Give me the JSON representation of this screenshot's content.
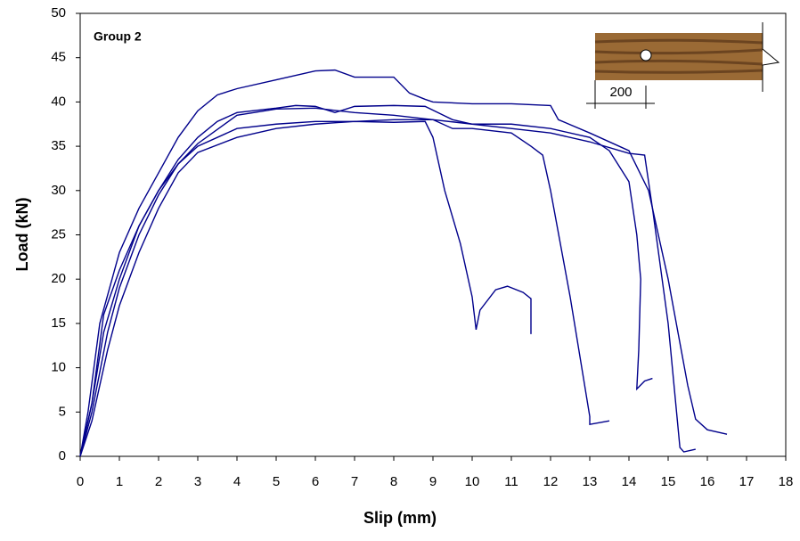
{
  "chart_data": {
    "type": "line",
    "xlabel": "Slip (mm)",
    "ylabel": "Load (kN)",
    "annotation": "Group 2",
    "inset_label": "200",
    "xlim": [
      0,
      18
    ],
    "xticks": [
      0,
      1,
      2,
      3,
      4,
      5,
      6,
      7,
      8,
      9,
      10,
      11,
      12,
      13,
      14,
      15,
      16,
      17,
      18
    ],
    "ylim": [
      0,
      50
    ],
    "yticks": [
      0,
      5,
      10,
      15,
      20,
      25,
      30,
      35,
      40,
      45,
      50
    ],
    "grid": false,
    "series": [
      {
        "color": "#00008b",
        "x": [
          0,
          0.2,
          0.5,
          1,
          1.5,
          2,
          2.5,
          3,
          3.5,
          4,
          5,
          6,
          6.5,
          7,
          8,
          8.4,
          8.8,
          9,
          10,
          11,
          12,
          12.2,
          13,
          14,
          14.5,
          15,
          15.5,
          15.7,
          16,
          16.5
        ],
        "values": [
          0,
          5,
          15,
          23,
          28,
          32,
          36,
          39,
          40.8,
          41.5,
          42.5,
          43.5,
          43.6,
          42.8,
          42.8,
          41,
          40.3,
          40,
          39.8,
          39.8,
          39.6,
          38,
          36.5,
          34.5,
          30,
          20,
          8,
          4.2,
          3,
          2.5
        ]
      },
      {
        "color": "#00008b",
        "x": [
          0,
          0.3,
          0.6,
          1,
          1.5,
          2,
          2.5,
          3,
          3.5,
          4,
          5,
          5.5,
          6,
          6.5,
          7,
          8,
          8.8,
          9.5,
          10,
          11,
          12,
          13,
          13.5,
          14,
          14.2,
          14.3,
          14.25,
          14.2,
          14.4,
          14.6
        ],
        "values": [
          0,
          6,
          16,
          21,
          26,
          30,
          33.5,
          36,
          37.8,
          38.8,
          39.3,
          39.6,
          39.5,
          38.8,
          39.5,
          39.6,
          39.5,
          38,
          37.5,
          37.5,
          37,
          36,
          34.5,
          31,
          25,
          20,
          12,
          7.6,
          8.5,
          8.8
        ]
      },
      {
        "color": "#00008b",
        "x": [
          0,
          0.3,
          0.7,
          1,
          1.5,
          2,
          2.5,
          3,
          4,
          5,
          6,
          7,
          8,
          8.8,
          9,
          9.3,
          9.7,
          10,
          10.1,
          10.2,
          10.6,
          10.9,
          11.3,
          11.5,
          11.5
        ],
        "values": [
          0,
          4,
          12,
          17,
          23,
          28,
          32,
          34.3,
          36,
          37,
          37.5,
          37.8,
          37.7,
          37.8,
          36,
          30,
          24,
          18,
          14.3,
          16.5,
          18.8,
          19.2,
          18.5,
          17.8,
          13.8
        ]
      },
      {
        "color": "#00008b",
        "x": [
          0,
          0.3,
          0.7,
          1,
          1.5,
          2,
          2.5,
          3,
          4,
          5,
          6,
          7,
          8,
          9,
          9.5,
          10,
          11,
          11.5,
          11.8,
          12,
          12.5,
          13,
          13,
          13.5
        ],
        "values": [
          0,
          5,
          14,
          19,
          25,
          29.5,
          33,
          35,
          37,
          37.5,
          37.8,
          37.8,
          38,
          38,
          37,
          37,
          36.5,
          35,
          34,
          30,
          18,
          4.5,
          3.6,
          4
        ]
      },
      {
        "color": "#00008b",
        "x": [
          0,
          0.3,
          0.6,
          1,
          1.5,
          2,
          2.5,
          3,
          4,
          5,
          6,
          7,
          8,
          9,
          10,
          11,
          12,
          13,
          14,
          14.4,
          14.6,
          15,
          15.3,
          15.4,
          15.7
        ],
        "values": [
          0,
          6,
          14,
          20,
          26,
          30,
          33,
          35.3,
          38.5,
          39.2,
          39.3,
          38.8,
          38.5,
          38,
          37.5,
          37,
          36.5,
          35.5,
          34.2,
          34,
          28,
          15,
          1,
          0.5,
          0.8
        ]
      }
    ]
  }
}
